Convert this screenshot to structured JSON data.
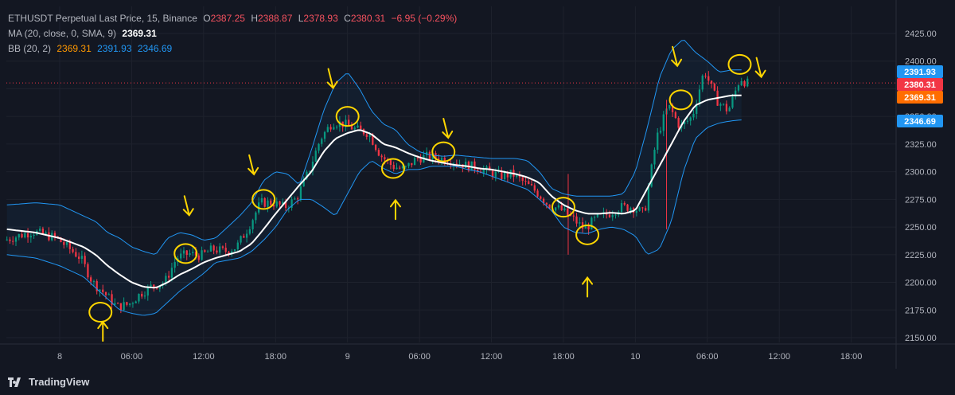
{
  "legend": {
    "symbol": "ETHUSDT Perpetual Last Price, 15, Binance",
    "o_label": "O",
    "o_value": "2387.25",
    "h_label": "H",
    "h_value": "2388.87",
    "l_label": "L",
    "l_value": "2378.93",
    "c_label": "C",
    "c_value": "2380.31",
    "change": "−6.95 (−0.29%)",
    "ma_label": "MA (20, close, 0, SMA, 9)",
    "ma_value": "2369.31",
    "bb_label": "BB (20, 2)",
    "bb_basis": "2369.31",
    "bb_upper": "2391.93",
    "bb_lower": "2346.69"
  },
  "footer": {
    "brand": "TradingView"
  },
  "colors": {
    "background": "#131722",
    "grid": "#1e222d",
    "up": "#089981",
    "down": "#f23645",
    "ma": "#ffffff",
    "bb": "#2196f3",
    "bb_fill": "rgba(33,150,243,0.06)",
    "annotation": "#ffd600",
    "badge_upper": "#2196f3",
    "badge_last": "#f23645",
    "badge_basis": "#ff6d00",
    "badge_lower": "#2196f3"
  },
  "chart_data": {
    "type": "candlestick",
    "ylim": [
      2145,
      2440
    ],
    "y_ticks": [
      2150,
      2175,
      2200,
      2225,
      2250,
      2275,
      2300,
      2325,
      2350,
      2375,
      2400,
      2425
    ],
    "y_tick_labels": [
      "2150.00",
      "2175.00",
      "2200.00",
      "2225.00",
      "2250.00",
      "2275.00",
      "2300.00",
      "2325.00",
      "2350.00",
      "2375.00",
      "2400.00",
      "2425.00"
    ],
    "x_ticks": [
      {
        "hour": 0,
        "label": "8"
      },
      {
        "hour": 6,
        "label": "06:00"
      },
      {
        "hour": 12,
        "label": "12:00"
      },
      {
        "hour": 18,
        "label": "18:00"
      },
      {
        "hour": 24,
        "label": "9"
      },
      {
        "hour": 30,
        "label": "06:00"
      },
      {
        "hour": 36,
        "label": "12:00"
      },
      {
        "hour": 42,
        "label": "18:00"
      },
      {
        "hour": 48,
        "label": "10"
      },
      {
        "hour": 54,
        "label": "06:00"
      },
      {
        "hour": 60,
        "label": "12:00"
      },
      {
        "hour": 66,
        "label": "18:00"
      }
    ],
    "x_range_hours": [
      -4.4,
      70.0
    ],
    "series": [
      {
        "name": "BB (20, 2)",
        "kind": "bb_upper",
        "x": [
          -4.4,
          -2,
          0,
          2,
          3,
          4,
          5,
          6,
          7,
          8,
          9,
          10,
          11,
          12,
          13,
          14,
          15,
          16,
          17,
          18,
          19,
          20,
          21,
          22,
          23,
          24,
          25,
          26,
          27,
          28,
          29,
          30,
          31,
          32,
          33,
          34,
          35,
          36,
          37,
          38,
          39,
          40,
          41,
          42,
          43,
          44,
          45,
          46,
          47,
          48,
          49,
          50,
          51,
          52,
          53,
          54,
          55,
          56,
          57
        ],
        "y": [
          2270,
          2272,
          2270,
          2260,
          2255,
          2245,
          2240,
          2232,
          2228,
          2225,
          2240,
          2245,
          2243,
          2238,
          2240,
          2250,
          2260,
          2272,
          2292,
          2300,
          2298,
          2288,
          2320,
          2355,
          2380,
          2390,
          2375,
          2355,
          2343,
          2338,
          2325,
          2318,
          2315,
          2314,
          2315,
          2314,
          2313,
          2312,
          2312,
          2312,
          2310,
          2300,
          2285,
          2280,
          2278,
          2278,
          2278,
          2278,
          2280,
          2300,
          2340,
          2385,
          2410,
          2420,
          2408,
          2400,
          2390,
          2392,
          2392
        ]
      },
      {
        "name": "BB (20, 2)",
        "kind": "bb_lower",
        "x": [
          -4.4,
          -2,
          0,
          2,
          3,
          4,
          5,
          6,
          7,
          8,
          9,
          10,
          11,
          12,
          13,
          14,
          15,
          16,
          17,
          18,
          19,
          20,
          21,
          22,
          23,
          24,
          25,
          26,
          27,
          28,
          29,
          30,
          31,
          32,
          33,
          34,
          35,
          36,
          37,
          38,
          39,
          40,
          41,
          42,
          43,
          44,
          45,
          46,
          47,
          48,
          49,
          50,
          51,
          52,
          53,
          54,
          55,
          56,
          57
        ],
        "y": [
          2225,
          2222,
          2215,
          2205,
          2195,
          2185,
          2175,
          2172,
          2170,
          2172,
          2182,
          2192,
          2200,
          2208,
          2218,
          2220,
          2222,
          2228,
          2238,
          2250,
          2266,
          2275,
          2275,
          2268,
          2260,
          2280,
          2300,
          2310,
          2303,
          2298,
          2302,
          2302,
          2305,
          2305,
          2305,
          2302,
          2300,
          2296,
          2292,
          2288,
          2284,
          2275,
          2265,
          2250,
          2245,
          2244,
          2248,
          2250,
          2248,
          2242,
          2225,
          2230,
          2255,
          2300,
          2330,
          2340,
          2344,
          2346,
          2347
        ]
      },
      {
        "name": "MA (20, close, 0, SMA, 9)",
        "kind": "ma",
        "x": [
          -4.4,
          -2,
          0,
          2,
          3,
          4,
          5,
          6,
          7,
          8,
          9,
          10,
          11,
          12,
          13,
          14,
          15,
          16,
          17,
          18,
          19,
          20,
          21,
          22,
          23,
          24,
          25,
          26,
          27,
          28,
          29,
          30,
          31,
          32,
          33,
          34,
          35,
          36,
          37,
          38,
          39,
          40,
          41,
          42,
          43,
          44,
          45,
          46,
          47,
          48,
          49,
          50,
          51,
          52,
          53,
          54,
          55,
          56,
          57
        ],
        "y": [
          2248,
          2245,
          2240,
          2232,
          2225,
          2215,
          2207,
          2200,
          2196,
          2195,
          2200,
          2207,
          2212,
          2218,
          2222,
          2225,
          2228,
          2235,
          2248,
          2262,
          2275,
          2288,
          2300,
          2318,
          2330,
          2335,
          2338,
          2334,
          2325,
          2322,
          2317,
          2313,
          2310,
          2308,
          2306,
          2305,
          2303,
          2302,
          2300,
          2298,
          2295,
          2290,
          2278,
          2270,
          2265,
          2262,
          2262,
          2263,
          2262,
          2265,
          2285,
          2305,
          2325,
          2345,
          2360,
          2365,
          2367,
          2369,
          2369
        ]
      }
    ],
    "last_price": 2380.31,
    "badges": [
      {
        "label": "2391.93",
        "value": 2391.93,
        "kind": "upper"
      },
      {
        "label": "2380.31",
        "value": 2380.31,
        "kind": "last"
      },
      {
        "label": "2369.31",
        "value": 2369.31,
        "kind": "basis"
      },
      {
        "label": "2346.69",
        "value": 2346.69,
        "kind": "lower"
      }
    ],
    "annotations": [
      {
        "kind": "ellipse",
        "hour": 3.4,
        "value": 2173
      },
      {
        "kind": "arrow-up",
        "hour": 3.6,
        "value": 2160
      },
      {
        "kind": "ellipse",
        "hour": 10.5,
        "value": 2226
      },
      {
        "kind": "arrow-down",
        "hour": 10.8,
        "value": 2265
      },
      {
        "kind": "ellipse",
        "hour": 17.0,
        "value": 2275
      },
      {
        "kind": "arrow-down",
        "hour": 16.2,
        "value": 2302
      },
      {
        "kind": "ellipse",
        "hour": 24.0,
        "value": 2350
      },
      {
        "kind": "arrow-down",
        "hour": 22.8,
        "value": 2380
      },
      {
        "kind": "ellipse",
        "hour": 27.8,
        "value": 2303
      },
      {
        "kind": "arrow-up",
        "hour": 28.0,
        "value": 2270
      },
      {
        "kind": "ellipse",
        "hour": 32.0,
        "value": 2318
      },
      {
        "kind": "arrow-down",
        "hour": 32.4,
        "value": 2335
      },
      {
        "kind": "ellipse",
        "hour": 42.0,
        "value": 2268
      },
      {
        "kind": "ellipse",
        "hour": 44.0,
        "value": 2243
      },
      {
        "kind": "arrow-up",
        "hour": 44.0,
        "value": 2200
      },
      {
        "kind": "ellipse",
        "hour": 51.8,
        "value": 2365
      },
      {
        "kind": "arrow-down",
        "hour": 51.5,
        "value": 2400
      },
      {
        "kind": "ellipse",
        "hour": 56.7,
        "value": 2397
      },
      {
        "kind": "arrow-down",
        "hour": 58.5,
        "value": 2390
      }
    ]
  }
}
